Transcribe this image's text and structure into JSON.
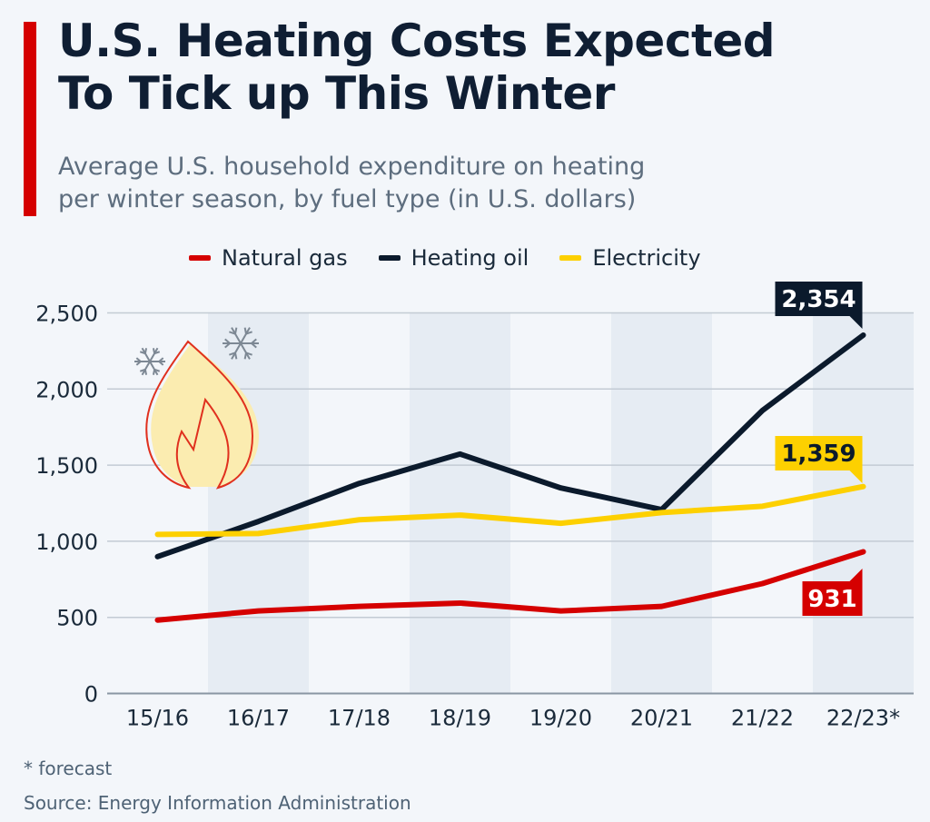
{
  "header": {
    "title_line1": "U.S. Heating Costs Expected",
    "title_line2": "To Tick up This Winter",
    "subtitle_line1": "Average U.S. household expenditure on heating",
    "subtitle_line2": "per winter season, by fuel type (in U.S. dollars)"
  },
  "footer": {
    "note": "* forecast",
    "source": "Source: Energy Information Administration"
  },
  "chart_data": {
    "type": "line",
    "title": "U.S. Heating Costs Expected To Tick up This Winter",
    "xlabel": "",
    "ylabel": "",
    "categories": [
      "15/16",
      "16/17",
      "17/18",
      "18/19",
      "19/20",
      "20/21",
      "21/22",
      "22/23*"
    ],
    "ylim": [
      0,
      2500
    ],
    "yticks": [
      0,
      500,
      1000,
      1500,
      2000,
      2500
    ],
    "ytick_labels": [
      "0",
      "500",
      "1,000",
      "1,500",
      "2,000",
      "2,500"
    ],
    "grid": true,
    "legend_position": "top",
    "series": [
      {
        "name": "Natural gas",
        "color": "#d50000",
        "values": [
          482,
          542,
          572,
          594,
          542,
          572,
          722,
          931
        ],
        "end_label": "931"
      },
      {
        "name": "Heating oil",
        "color": "#0b1a2c",
        "values": [
          899,
          1130,
          1380,
          1573,
          1350,
          1208,
          1859,
          2354
        ],
        "end_label": "2,354"
      },
      {
        "name": "Electricity",
        "color": "#fdd000",
        "values": [
          1045,
          1051,
          1141,
          1172,
          1118,
          1188,
          1230,
          1359
        ],
        "end_label": "1,359"
      }
    ]
  }
}
